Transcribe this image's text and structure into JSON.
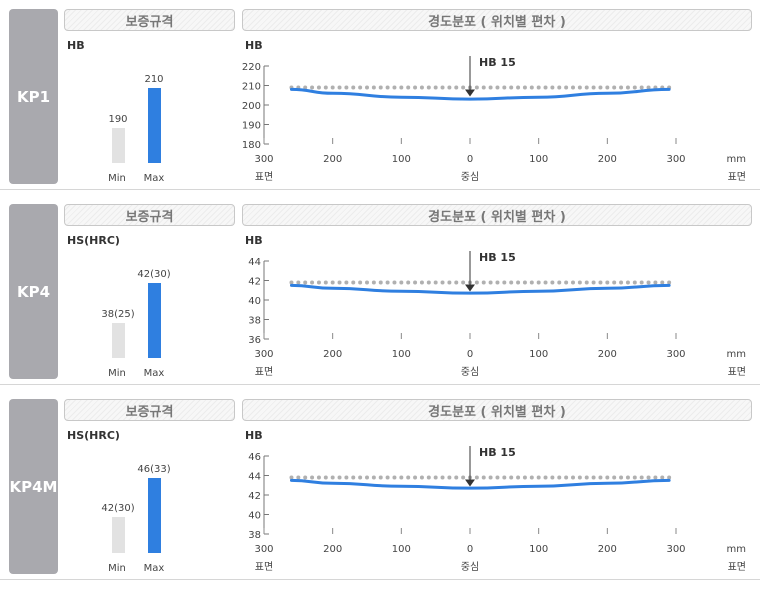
{
  "headers": {
    "spec": "보증규격",
    "distribution": "경도분포 ( 위치별 편차 )"
  },
  "x_axis": {
    "ticks": [
      "300",
      "200",
      "100",
      "0",
      "100",
      "200",
      "300"
    ],
    "unit": "mm",
    "left": "표면",
    "center": "중심",
    "right": "표면"
  },
  "marker_label": "HB 15",
  "bar_labels": {
    "min": "Min",
    "max": "Max"
  },
  "colors": {
    "accent": "#2f7fe0",
    "dots": "#b0b0b0",
    "label_box": "#a9a9ae"
  },
  "chart_data": [
    {
      "type": "line",
      "grade": "KP1",
      "spec_unit": "HB",
      "spec": {
        "min": 190,
        "max": 210,
        "min_label": "190",
        "max_label": "210"
      },
      "ylabel": "HB",
      "yticks": [
        180,
        190,
        200,
        210,
        220
      ],
      "ylim": [
        180,
        220
      ],
      "xlim": [
        -300,
        300
      ],
      "dotted_level": 209,
      "series": [
        {
          "x": [
            -260,
            -200,
            -100,
            0,
            100,
            200,
            290
          ],
          "values": [
            208,
            206,
            204,
            203,
            204,
            206,
            208
          ]
        }
      ]
    },
    {
      "type": "line",
      "grade": "KP4",
      "spec_unit": "HS(HRC)",
      "spec": {
        "min": 38,
        "max": 42,
        "min_label": "38(25)",
        "max_label": "42(30)"
      },
      "ylabel": "HB",
      "yticks": [
        36,
        38,
        40,
        42,
        44
      ],
      "ylim": [
        36,
        44
      ],
      "xlim": [
        -300,
        300
      ],
      "dotted_level": 41.8,
      "series": [
        {
          "x": [
            -260,
            -200,
            -100,
            0,
            100,
            200,
            290
          ],
          "values": [
            41.5,
            41.2,
            40.9,
            40.7,
            40.9,
            41.2,
            41.5
          ]
        }
      ]
    },
    {
      "type": "line",
      "grade": "KP4M",
      "spec_unit": "HS(HRC)",
      "spec": {
        "min": 42,
        "max": 46,
        "min_label": "42(30)",
        "max_label": "46(33)"
      },
      "ylabel": "HB",
      "yticks": [
        38,
        40,
        42,
        44,
        46
      ],
      "ylim": [
        38,
        46
      ],
      "xlim": [
        -300,
        300
      ],
      "dotted_level": 43.8,
      "series": [
        {
          "x": [
            -260,
            -200,
            -100,
            0,
            100,
            200,
            290
          ],
          "values": [
            43.5,
            43.2,
            42.9,
            42.7,
            42.9,
            43.2,
            43.5
          ]
        }
      ]
    }
  ]
}
